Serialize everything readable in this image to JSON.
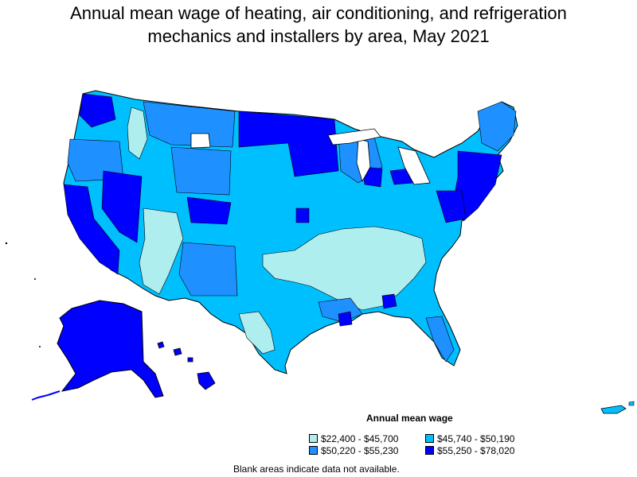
{
  "title": {
    "line1": "Annual mean wage of heating, air conditioning, and refrigeration",
    "line2": "mechanics and installers by area, May 2021"
  },
  "legend": {
    "title": "Annual mean wage",
    "items": [
      {
        "label": "$22,400 - $45,700",
        "color": "#aeeeee"
      },
      {
        "label": "$45,740 - $50,190",
        "color": "#00bfff"
      },
      {
        "label": "$50,220 - $55,230",
        "color": "#1e90ff"
      },
      {
        "label": "$55,250 - $78,020",
        "color": "#0000ff"
      }
    ]
  },
  "note": "Blank areas indicate data not available.",
  "colors": {
    "border": "#000000",
    "background": "#ffffff"
  }
}
